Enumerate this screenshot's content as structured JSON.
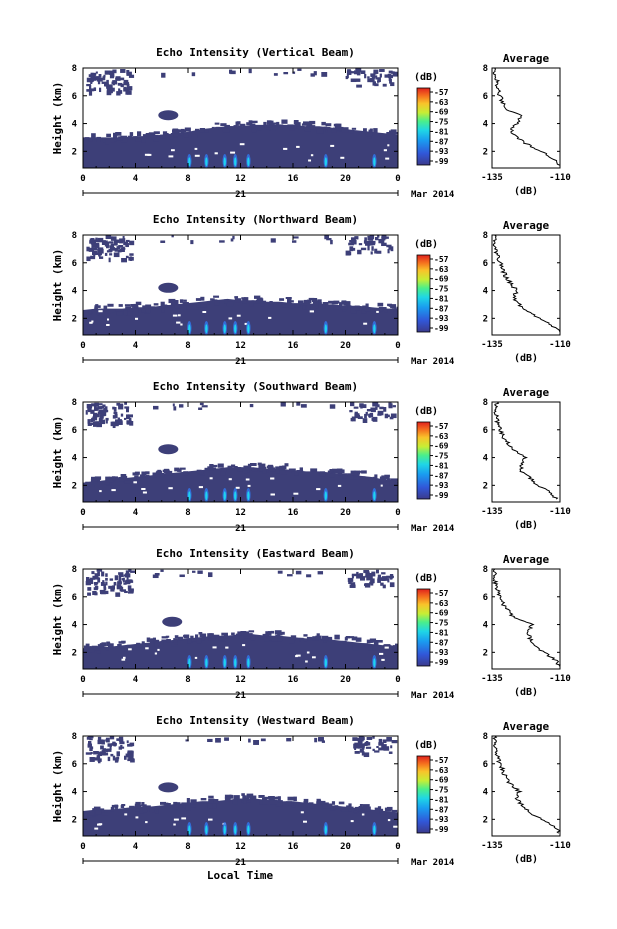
{
  "colors": {
    "background": "#3d3f78",
    "echo_low": "#3a3f7e",
    "echo_peak": "#1fd2f0"
  },
  "global": {
    "xlabel": "Local Time"
  },
  "chart_data": [
    {
      "type": "heatmap",
      "title": "Echo Intensity (Vertical Beam)",
      "ylabel": "Height (km)",
      "xticks": [
        "0",
        "4",
        "8",
        "12",
        "16",
        "20",
        "0"
      ],
      "yticks": [
        "2",
        "4",
        "6",
        "8"
      ],
      "xlim": [
        0,
        24
      ],
      "ylim": [
        0.8,
        8
      ],
      "date_center": "21",
      "date_right": "Mar 2014",
      "colorbar_unit": "(dB)",
      "colorbar_ticks": [
        "-57",
        "-63",
        "-69",
        "-75",
        "-81",
        "-87",
        "-93",
        "-99"
      ],
      "layer_top_km": [
        3.0,
        3.0,
        3.0,
        3.0,
        3.1,
        3.1,
        3.2,
        3.3,
        3.4,
        3.6,
        3.7,
        3.8,
        3.8,
        3.9,
        3.9,
        3.9,
        3.9,
        3.8,
        3.8,
        3.7,
        3.6,
        3.5,
        3.4,
        3.3,
        3.2
      ],
      "cloud_km": {
        "time": 6.5,
        "height": 4.6
      },
      "avg_title": "Average",
      "avg_xlabel": "(dB)",
      "avg_xticks": [
        "-135",
        "-110"
      ],
      "avg_xlim": [
        -135,
        -110
      ],
      "avg_profile": {
        "height": [
          1.0,
          1.5,
          2.0,
          2.5,
          3.0,
          3.5,
          4.0,
          4.5,
          5.0,
          5.5,
          6.0,
          6.5,
          7.0,
          7.5,
          8.0
        ],
        "value": [
          -110,
          -113,
          -117,
          -122,
          -126,
          -128,
          -126,
          -124,
          -129,
          -131,
          -132,
          -133,
          -133,
          -134,
          -134
        ]
      }
    },
    {
      "type": "heatmap",
      "title": "Echo Intensity (Northward Beam)",
      "ylabel": "Height (km)",
      "xticks": [
        "0",
        "4",
        "8",
        "12",
        "16",
        "20",
        "0"
      ],
      "yticks": [
        "2",
        "4",
        "6",
        "8"
      ],
      "xlim": [
        0,
        24
      ],
      "ylim": [
        0.8,
        8
      ],
      "date_center": "21",
      "date_right": "Mar 2014",
      "colorbar_unit": "(dB)",
      "colorbar_ticks": [
        "-57",
        "-63",
        "-69",
        "-75",
        "-81",
        "-87",
        "-93",
        "-99"
      ],
      "layer_top_km": [
        2.6,
        2.7,
        2.7,
        2.7,
        2.8,
        2.8,
        2.9,
        3.0,
        3.1,
        3.2,
        3.3,
        3.4,
        3.3,
        3.3,
        3.2,
        3.2,
        3.1,
        3.1,
        3.0,
        3.0,
        2.9,
        2.9,
        2.8,
        2.7,
        2.7
      ],
      "cloud_km": {
        "time": 6.5,
        "height": 4.2
      },
      "avg_title": "Average",
      "avg_xlabel": "(dB)",
      "avg_xticks": [
        "-135",
        "-110"
      ],
      "avg_xlim": [
        -135,
        -110
      ],
      "avg_profile": {
        "height": [
          1.0,
          1.5,
          2.0,
          2.5,
          3.0,
          3.5,
          4.0,
          4.5,
          5.0,
          5.5,
          6.0,
          6.5,
          7.0,
          7.5,
          8.0
        ],
        "value": [
          -110,
          -113,
          -118,
          -122,
          -125,
          -127,
          -126,
          -128,
          -130,
          -131,
          -132,
          -133,
          -134,
          -134,
          -134
        ]
      }
    },
    {
      "type": "heatmap",
      "title": "Echo Intensity (Southward Beam)",
      "ylabel": "Height (km)",
      "xticks": [
        "0",
        "4",
        "8",
        "12",
        "16",
        "20",
        "0"
      ],
      "yticks": [
        "2",
        "4",
        "6",
        "8"
      ],
      "xlim": [
        0,
        24
      ],
      "ylim": [
        0.8,
        8
      ],
      "date_center": "21",
      "date_right": "Mar 2014",
      "colorbar_unit": "(dB)",
      "colorbar_ticks": [
        "-57",
        "-63",
        "-69",
        "-75",
        "-81",
        "-87",
        "-93",
        "-99"
      ],
      "layer_top_km": [
        2.2,
        2.3,
        2.4,
        2.5,
        2.6,
        2.7,
        2.8,
        2.9,
        3.0,
        3.1,
        3.2,
        3.3,
        3.3,
        3.3,
        3.2,
        3.2,
        3.1,
        3.0,
        3.0,
        2.9,
        2.8,
        2.7,
        2.6,
        2.4,
        2.3
      ],
      "cloud_km": {
        "time": 6.5,
        "height": 4.6
      },
      "avg_title": "Average",
      "avg_xlabel": "(dB)",
      "avg_xticks": [
        "-135",
        "-110"
      ],
      "avg_xlim": [
        -135,
        -110
      ],
      "avg_profile": {
        "height": [
          1.0,
          1.5,
          2.0,
          2.5,
          3.0,
          3.5,
          4.0,
          4.5,
          5.0,
          5.5,
          6.0,
          6.5,
          7.0,
          7.5,
          8.0
        ],
        "value": [
          -111,
          -114,
          -118,
          -121,
          -124,
          -124,
          -123,
          -127,
          -129,
          -131,
          -132,
          -133,
          -133,
          -134,
          -133
        ]
      }
    },
    {
      "type": "heatmap",
      "title": "Echo Intensity (Eastward Beam)",
      "ylabel": "Height (km)",
      "xticks": [
        "0",
        "4",
        "8",
        "12",
        "16",
        "20",
        "0"
      ],
      "yticks": [
        "2",
        "4",
        "6",
        "8"
      ],
      "xlim": [
        0,
        24
      ],
      "ylim": [
        0.8,
        8
      ],
      "date_center": "21",
      "date_right": "Mar 2014",
      "colorbar_unit": "(dB)",
      "colorbar_ticks": [
        "-57",
        "-63",
        "-69",
        "-75",
        "-81",
        "-87",
        "-93",
        "-99"
      ],
      "layer_top_km": [
        2.3,
        2.4,
        2.4,
        2.5,
        2.6,
        2.7,
        2.8,
        2.9,
        3.0,
        3.1,
        3.2,
        3.2,
        3.3,
        3.3,
        3.2,
        3.2,
        3.1,
        3.0,
        3.0,
        2.9,
        2.8,
        2.7,
        2.6,
        2.5,
        2.4
      ],
      "cloud_km": {
        "time": 6.8,
        "height": 4.2
      },
      "avg_title": "Average",
      "avg_xlabel": "(dB)",
      "avg_xticks": [
        "-135",
        "-110"
      ],
      "avg_xlim": [
        -135,
        -110
      ],
      "avg_profile": {
        "height": [
          1.0,
          1.5,
          2.0,
          2.5,
          3.0,
          3.5,
          4.0,
          4.5,
          5.0,
          5.5,
          6.0,
          6.5,
          7.0,
          7.5,
          8.0
        ],
        "value": [
          -110,
          -112,
          -116,
          -119,
          -121,
          -122,
          -120,
          -127,
          -129,
          -131,
          -132,
          -133,
          -134,
          -134,
          -134
        ]
      }
    },
    {
      "type": "heatmap",
      "title": "Echo Intensity (Westward Beam)",
      "ylabel": "Height (km)",
      "xticks": [
        "0",
        "4",
        "8",
        "12",
        "16",
        "20",
        "0"
      ],
      "yticks": [
        "2",
        "4",
        "6",
        "8"
      ],
      "xlim": [
        0,
        24
      ],
      "ylim": [
        0.8,
        8
      ],
      "date_center": "21",
      "date_right": "Mar 2014",
      "colorbar_unit": "(dB)",
      "colorbar_ticks": [
        "-57",
        "-63",
        "-69",
        "-75",
        "-81",
        "-87",
        "-93",
        "-99"
      ],
      "layer_top_km": [
        2.6,
        2.7,
        2.7,
        2.8,
        2.9,
        2.9,
        3.0,
        3.1,
        3.2,
        3.3,
        3.3,
        3.4,
        3.5,
        3.5,
        3.4,
        3.3,
        3.3,
        3.2,
        3.1,
        3.0,
        2.9,
        2.8,
        2.7,
        2.6,
        2.5
      ],
      "cloud_km": {
        "time": 6.5,
        "height": 4.3
      },
      "avg_title": "Average",
      "avg_xlabel": "(dB)",
      "avg_xticks": [
        "-135",
        "-110"
      ],
      "avg_xlim": [
        -135,
        -110
      ],
      "avg_profile": {
        "height": [
          1.0,
          1.5,
          2.0,
          2.5,
          3.0,
          3.5,
          4.0,
          4.5,
          5.0,
          5.5,
          6.0,
          6.5,
          7.0,
          7.5,
          8.0
        ],
        "value": [
          -110,
          -112,
          -117,
          -121,
          -124,
          -126,
          -125,
          -128,
          -130,
          -131,
          -132,
          -133,
          -133,
          -134,
          -134
        ]
      }
    }
  ]
}
